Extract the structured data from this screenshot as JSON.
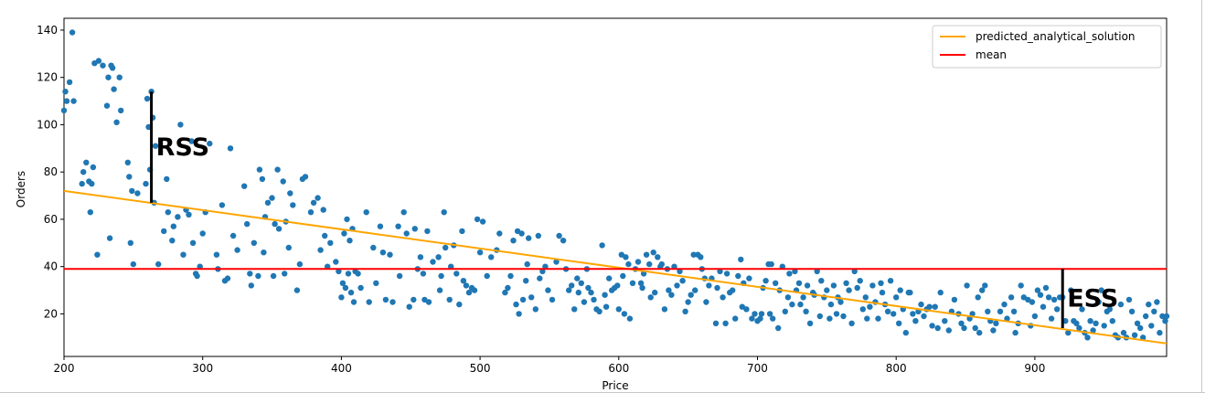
{
  "chart_data": {
    "type": "scatter",
    "xlabel": "Price",
    "ylabel": "Orders",
    "xlim": [
      200,
      995
    ],
    "ylim": [
      2,
      145
    ],
    "x_ticks": [
      200,
      300,
      400,
      500,
      600,
      700,
      800,
      900
    ],
    "y_ticks": [
      20,
      40,
      60,
      80,
      100,
      120,
      140
    ],
    "grid": false,
    "legend_position": "top-right",
    "colors": {
      "points": "#1f77b4",
      "regression": "#ffa500",
      "mean": "#ff0000",
      "annotation": "#000000"
    },
    "legend": [
      {
        "label": "predicted_analytical_solution",
        "color": "#ffa500"
      },
      {
        "label": "mean",
        "color": "#ff0000"
      }
    ],
    "regression_line": {
      "x": [
        200,
        995
      ],
      "y": [
        72,
        7.5
      ]
    },
    "mean_line": {
      "y": 39
    },
    "annotations": [
      {
        "label": "RSS",
        "x": 263,
        "y_from": 114,
        "y_to": 67
      },
      {
        "label": "ESS",
        "x": 920,
        "y_from": 39,
        "y_to": 14
      }
    ],
    "points": [
      [
        200,
        106
      ],
      [
        201,
        114
      ],
      [
        202,
        110
      ],
      [
        204,
        118
      ],
      [
        206,
        139
      ],
      [
        207,
        110
      ],
      [
        213,
        75
      ],
      [
        214,
        80
      ],
      [
        216,
        84
      ],
      [
        218,
        76
      ],
      [
        219,
        63
      ],
      [
        220,
        75
      ],
      [
        221,
        82
      ],
      [
        222,
        126
      ],
      [
        224,
        45
      ],
      [
        225,
        127
      ],
      [
        228,
        125
      ],
      [
        231,
        108
      ],
      [
        232,
        120
      ],
      [
        233,
        52
      ],
      [
        234,
        125
      ],
      [
        235,
        124
      ],
      [
        236,
        115
      ],
      [
        238,
        101
      ],
      [
        240,
        120
      ],
      [
        241,
        106
      ],
      [
        246,
        84
      ],
      [
        247,
        78
      ],
      [
        248,
        50
      ],
      [
        249,
        72
      ],
      [
        250,
        41
      ],
      [
        253,
        71
      ],
      [
        259,
        75
      ],
      [
        260,
        111
      ],
      [
        261,
        99
      ],
      [
        262,
        81
      ],
      [
        263,
        114
      ],
      [
        264,
        103
      ],
      [
        265,
        67
      ],
      [
        266,
        91
      ],
      [
        268,
        41
      ],
      [
        272,
        55
      ],
      [
        274,
        77
      ],
      [
        275,
        63
      ],
      [
        278,
        51
      ],
      [
        279,
        57
      ],
      [
        282,
        61
      ],
      [
        284,
        100
      ],
      [
        286,
        45
      ],
      [
        288,
        64
      ],
      [
        290,
        62
      ],
      [
        292,
        93
      ],
      [
        293,
        50
      ],
      [
        295,
        37
      ],
      [
        296,
        36
      ],
      [
        298,
        40
      ],
      [
        300,
        54
      ],
      [
        302,
        63
      ],
      [
        305,
        92
      ],
      [
        310,
        45
      ],
      [
        311,
        39
      ],
      [
        314,
        66
      ],
      [
        316,
        34
      ],
      [
        318,
        35
      ],
      [
        320,
        90
      ],
      [
        322,
        53
      ],
      [
        325,
        47
      ],
      [
        330,
        74
      ],
      [
        332,
        58
      ],
      [
        334,
        37
      ],
      [
        335,
        32
      ],
      [
        337,
        50
      ],
      [
        340,
        36
      ],
      [
        341,
        81
      ],
      [
        343,
        77
      ],
      [
        344,
        46
      ],
      [
        345,
        61
      ],
      [
        347,
        67
      ],
      [
        350,
        69
      ],
      [
        351,
        36
      ],
      [
        352,
        58
      ],
      [
        354,
        81
      ],
      [
        355,
        56
      ],
      [
        358,
        76
      ],
      [
        359,
        37
      ],
      [
        360,
        59
      ],
      [
        362,
        48
      ],
      [
        363,
        71
      ],
      [
        365,
        66
      ],
      [
        368,
        30
      ],
      [
        370,
        41
      ],
      [
        372,
        77
      ],
      [
        374,
        78
      ],
      [
        378,
        63
      ],
      [
        380,
        67
      ],
      [
        383,
        69
      ],
      [
        385,
        47
      ],
      [
        387,
        64
      ],
      [
        388,
        53
      ],
      [
        390,
        40
      ],
      [
        392,
        50
      ],
      [
        396,
        42
      ],
      [
        398,
        38
      ],
      [
        400,
        27
      ],
      [
        401,
        33
      ],
      [
        402,
        54
      ],
      [
        403,
        31
      ],
      [
        404,
        60
      ],
      [
        405,
        37
      ],
      [
        406,
        51
      ],
      [
        407,
        29
      ],
      [
        408,
        56
      ],
      [
        409,
        25
      ],
      [
        410,
        38
      ],
      [
        412,
        37
      ],
      [
        414,
        31
      ],
      [
        418,
        63
      ],
      [
        420,
        25
      ],
      [
        423,
        48
      ],
      [
        425,
        33
      ],
      [
        428,
        57
      ],
      [
        430,
        46
      ],
      [
        432,
        26
      ],
      [
        435,
        45
      ],
      [
        437,
        25
      ],
      [
        441,
        57
      ],
      [
        442,
        36
      ],
      [
        445,
        63
      ],
      [
        447,
        54
      ],
      [
        449,
        23
      ],
      [
        452,
        26
      ],
      [
        453,
        56
      ],
      [
        455,
        39
      ],
      [
        457,
        44
      ],
      [
        459,
        37
      ],
      [
        460,
        26
      ],
      [
        462,
        55
      ],
      [
        463,
        25
      ],
      [
        466,
        42
      ],
      [
        470,
        44
      ],
      [
        471,
        30
      ],
      [
        472,
        36
      ],
      [
        474,
        63
      ],
      [
        475,
        48
      ],
      [
        478,
        26
      ],
      [
        479,
        40
      ],
      [
        481,
        49
      ],
      [
        483,
        37
      ],
      [
        485,
        24
      ],
      [
        487,
        55
      ],
      [
        488,
        34
      ],
      [
        490,
        32
      ],
      [
        492,
        29
      ],
      [
        494,
        31
      ],
      [
        496,
        30
      ],
      [
        498,
        60
      ],
      [
        500,
        46
      ],
      [
        502,
        59
      ],
      [
        505,
        36
      ],
      [
        508,
        44
      ],
      [
        512,
        47
      ],
      [
        514,
        54
      ],
      [
        518,
        29
      ],
      [
        520,
        31
      ],
      [
        522,
        36
      ],
      [
        524,
        51
      ],
      [
        526,
        24
      ],
      [
        527,
        55
      ],
      [
        528,
        20
      ],
      [
        530,
        54
      ],
      [
        531,
        26
      ],
      [
        533,
        34
      ],
      [
        534,
        41
      ],
      [
        535,
        52
      ],
      [
        537,
        27
      ],
      [
        540,
        22
      ],
      [
        542,
        53
      ],
      [
        543,
        35
      ],
      [
        545,
        38
      ],
      [
        547,
        40
      ],
      [
        549,
        30
      ],
      [
        552,
        26
      ],
      [
        555,
        42
      ],
      [
        557,
        53
      ],
      [
        560,
        51
      ],
      [
        562,
        39
      ],
      [
        564,
        30
      ],
      [
        566,
        32
      ],
      [
        568,
        22
      ],
      [
        570,
        35
      ],
      [
        571,
        29
      ],
      [
        573,
        33
      ],
      [
        575,
        25
      ],
      [
        577,
        39
      ],
      [
        578,
        31
      ],
      [
        580,
        29
      ],
      [
        582,
        26
      ],
      [
        584,
        22
      ],
      [
        586,
        21
      ],
      [
        588,
        49
      ],
      [
        590,
        28
      ],
      [
        591,
        23
      ],
      [
        593,
        35
      ],
      [
        595,
        30
      ],
      [
        597,
        31
      ],
      [
        599,
        32
      ],
      [
        600,
        22
      ],
      [
        602,
        45
      ],
      [
        603,
        36
      ],
      [
        604,
        20
      ],
      [
        605,
        44
      ],
      [
        607,
        41
      ],
      [
        608,
        18
      ],
      [
        610,
        33
      ],
      [
        612,
        39
      ],
      [
        614,
        42
      ],
      [
        616,
        33
      ],
      [
        617,
        31
      ],
      [
        618,
        37
      ],
      [
        620,
        45
      ],
      [
        622,
        41
      ],
      [
        623,
        27
      ],
      [
        625,
        46
      ],
      [
        626,
        29
      ],
      [
        628,
        44
      ],
      [
        630,
        40
      ],
      [
        631,
        41
      ],
      [
        633,
        22
      ],
      [
        635,
        39
      ],
      [
        636,
        30
      ],
      [
        638,
        28
      ],
      [
        640,
        40
      ],
      [
        642,
        32
      ],
      [
        644,
        38
      ],
      [
        646,
        34
      ],
      [
        648,
        21
      ],
      [
        650,
        25
      ],
      [
        652,
        28
      ],
      [
        654,
        45
      ],
      [
        655,
        30
      ],
      [
        657,
        45
      ],
      [
        659,
        44
      ],
      [
        660,
        39
      ],
      [
        662,
        35
      ],
      [
        663,
        25
      ],
      [
        665,
        32
      ],
      [
        667,
        35
      ],
      [
        670,
        16
      ],
      [
        671,
        31
      ],
      [
        673,
        38
      ],
      [
        675,
        27
      ],
      [
        677,
        16
      ],
      [
        678,
        37
      ],
      [
        680,
        29
      ],
      [
        682,
        30
      ],
      [
        684,
        18
      ],
      [
        686,
        36
      ],
      [
        688,
        43
      ],
      [
        689,
        23
      ],
      [
        690,
        33
      ],
      [
        692,
        22
      ],
      [
        694,
        35
      ],
      [
        696,
        18
      ],
      [
        698,
        20
      ],
      [
        700,
        17
      ],
      [
        702,
        18
      ],
      [
        703,
        20
      ],
      [
        704,
        31
      ],
      [
        706,
        34
      ],
      [
        708,
        41
      ],
      [
        709,
        20
      ],
      [
        710,
        41
      ],
      [
        711,
        18
      ],
      [
        713,
        33
      ],
      [
        715,
        14
      ],
      [
        716,
        30
      ],
      [
        718,
        40
      ],
      [
        720,
        21
      ],
      [
        722,
        27
      ],
      [
        723,
        37
      ],
      [
        725,
        24
      ],
      [
        727,
        38
      ],
      [
        728,
        30
      ],
      [
        730,
        33
      ],
      [
        731,
        24
      ],
      [
        733,
        27
      ],
      [
        735,
        21
      ],
      [
        736,
        32
      ],
      [
        738,
        16
      ],
      [
        740,
        29
      ],
      [
        741,
        28
      ],
      [
        743,
        38
      ],
      [
        745,
        19
      ],
      [
        746,
        34
      ],
      [
        748,
        27
      ],
      [
        750,
        30
      ],
      [
        752,
        18
      ],
      [
        753,
        24
      ],
      [
        755,
        32
      ],
      [
        757,
        20
      ],
      [
        758,
        27
      ],
      [
        760,
        25
      ],
      [
        762,
        19
      ],
      [
        764,
        33
      ],
      [
        766,
        30
      ],
      [
        768,
        16
      ],
      [
        770,
        38
      ],
      [
        772,
        31
      ],
      [
        774,
        34
      ],
      [
        776,
        22
      ],
      [
        778,
        27
      ],
      [
        779,
        18
      ],
      [
        781,
        23
      ],
      [
        783,
        32
      ],
      [
        785,
        25
      ],
      [
        787,
        18
      ],
      [
        789,
        33
      ],
      [
        790,
        29
      ],
      [
        792,
        24
      ],
      [
        794,
        21
      ],
      [
        796,
        34
      ],
      [
        798,
        20
      ],
      [
        800,
        27
      ],
      [
        802,
        16
      ],
      [
        803,
        30
      ],
      [
        805,
        22
      ],
      [
        807,
        12
      ],
      [
        809,
        29
      ],
      [
        810,
        29
      ],
      [
        812,
        20
      ],
      [
        814,
        17
      ],
      [
        816,
        21
      ],
      [
        818,
        24
      ],
      [
        820,
        19
      ],
      [
        822,
        22
      ],
      [
        824,
        23
      ],
      [
        826,
        15
      ],
      [
        828,
        23
      ],
      [
        830,
        14
      ],
      [
        832,
        29
      ],
      [
        835,
        17
      ],
      [
        838,
        13
      ],
      [
        840,
        21
      ],
      [
        842,
        26
      ],
      [
        845,
        20
      ],
      [
        847,
        16
      ],
      [
        849,
        14
      ],
      [
        851,
        32
      ],
      [
        853,
        18
      ],
      [
        855,
        20
      ],
      [
        857,
        14
      ],
      [
        859,
        27
      ],
      [
        860,
        12
      ],
      [
        862,
        30
      ],
      [
        864,
        32
      ],
      [
        866,
        21
      ],
      [
        868,
        17
      ],
      [
        870,
        13
      ],
      [
        872,
        16
      ],
      [
        875,
        21
      ],
      [
        878,
        24
      ],
      [
        880,
        18
      ],
      [
        883,
        27
      ],
      [
        885,
        21
      ],
      [
        886,
        12
      ],
      [
        888,
        16
      ],
      [
        890,
        32
      ],
      [
        892,
        27
      ],
      [
        895,
        26
      ],
      [
        897,
        15
      ],
      [
        898,
        25
      ],
      [
        900,
        19
      ],
      [
        902,
        30
      ],
      [
        904,
        28
      ],
      [
        906,
        23
      ],
      [
        908,
        31
      ],
      [
        910,
        27
      ],
      [
        912,
        18
      ],
      [
        914,
        26
      ],
      [
        916,
        22
      ],
      [
        918,
        27
      ],
      [
        920,
        27
      ],
      [
        922,
        17
      ],
      [
        924,
        12
      ],
      [
        926,
        30
      ],
      [
        928,
        17
      ],
      [
        930,
        16
      ],
      [
        932,
        14
      ],
      [
        934,
        22
      ],
      [
        936,
        12
      ],
      [
        938,
        10
      ],
      [
        940,
        17
      ],
      [
        942,
        13
      ],
      [
        944,
        16
      ],
      [
        946,
        25
      ],
      [
        948,
        30
      ],
      [
        950,
        15
      ],
      [
        952,
        21
      ],
      [
        954,
        22
      ],
      [
        956,
        17
      ],
      [
        958,
        11
      ],
      [
        960,
        10
      ],
      [
        962,
        24
      ],
      [
        964,
        12
      ],
      [
        966,
        10
      ],
      [
        968,
        26
      ],
      [
        970,
        21
      ],
      [
        972,
        11
      ],
      [
        974,
        16
      ],
      [
        976,
        14
      ],
      [
        978,
        10
      ],
      [
        980,
        19
      ],
      [
        982,
        24
      ],
      [
        984,
        15
      ],
      [
        986,
        21
      ],
      [
        988,
        25
      ],
      [
        990,
        12
      ],
      [
        992,
        19
      ],
      [
        994,
        17
      ],
      [
        995,
        19
      ]
    ]
  }
}
